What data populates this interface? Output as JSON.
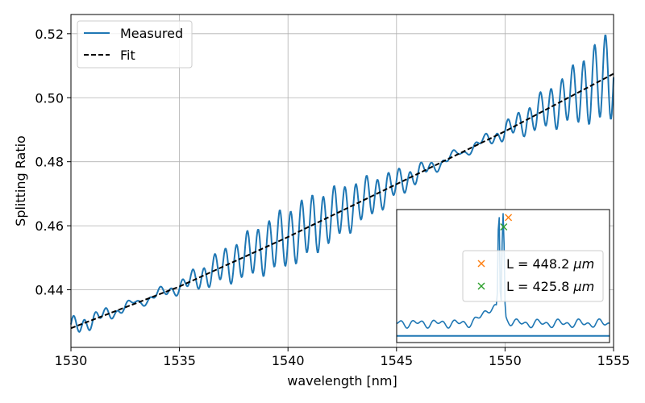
{
  "chart_data": {
    "type": "line",
    "title": "",
    "xlabel": "wavelength [nm]",
    "ylabel": "Splitting Ratio",
    "xlim": [
      1530,
      1555
    ],
    "ylim": [
      0.422,
      0.526
    ],
    "xticks": [
      1530,
      1535,
      1540,
      1545,
      1550,
      1555
    ],
    "yticks": [
      0.44,
      0.46,
      0.48,
      0.5,
      0.52
    ],
    "grid": true,
    "legend_position": "top-left",
    "legend": [
      {
        "label": "Measured",
        "style": "solid",
        "color": "#1f77b4"
      },
      {
        "label": "Fit",
        "style": "dashed",
        "color": "#000000"
      }
    ],
    "series": [
      {
        "name": "Fit",
        "style": "dashed",
        "color": "#000000",
        "x": [
          1530,
          1535,
          1540,
          1545,
          1550,
          1555
        ],
        "y": [
          0.428,
          0.441,
          0.4565,
          0.473,
          0.4895,
          0.5075
        ]
      },
      {
        "name": "Measured",
        "style": "solid",
        "color": "#1f77b4",
        "model": "oscillation around fit",
        "period_nm": 0.5,
        "envelope": {
          "x": [
            1530,
            1533,
            1535,
            1537,
            1539.5,
            1541,
            1543,
            1545,
            1546.5,
            1548,
            1549.5,
            1551,
            1553,
            1554.5,
            1555
          ],
          "amplitude": [
            0.0025,
            0.0005,
            0.0015,
            0.005,
            0.0085,
            0.009,
            0.007,
            0.004,
            0.0015,
            0.0005,
            0.0015,
            0.004,
            0.008,
            0.013,
            0.013
          ]
        }
      }
    ],
    "inset": {
      "type": "line",
      "position": "bottom-right",
      "series_color": "#1f77b4",
      "xlim": [
        0,
        1
      ],
      "ylim": [
        0,
        1
      ],
      "baseline_level": 0.05,
      "noise_level": 0.08,
      "peak_location": 0.5,
      "peak_height": 0.95,
      "legend": [
        {
          "label": "L = 448.2",
          "unit": "μm",
          "marker": "x",
          "color": "#ff7f0e"
        },
        {
          "label": "L = 425.8",
          "unit": "μm",
          "marker": "x",
          "color": "#2ca02c"
        }
      ],
      "markers": [
        {
          "x": 0.525,
          "y": 0.94,
          "color": "#ff7f0e"
        },
        {
          "x": 0.503,
          "y": 0.87,
          "color": "#2ca02c"
        }
      ]
    }
  }
}
